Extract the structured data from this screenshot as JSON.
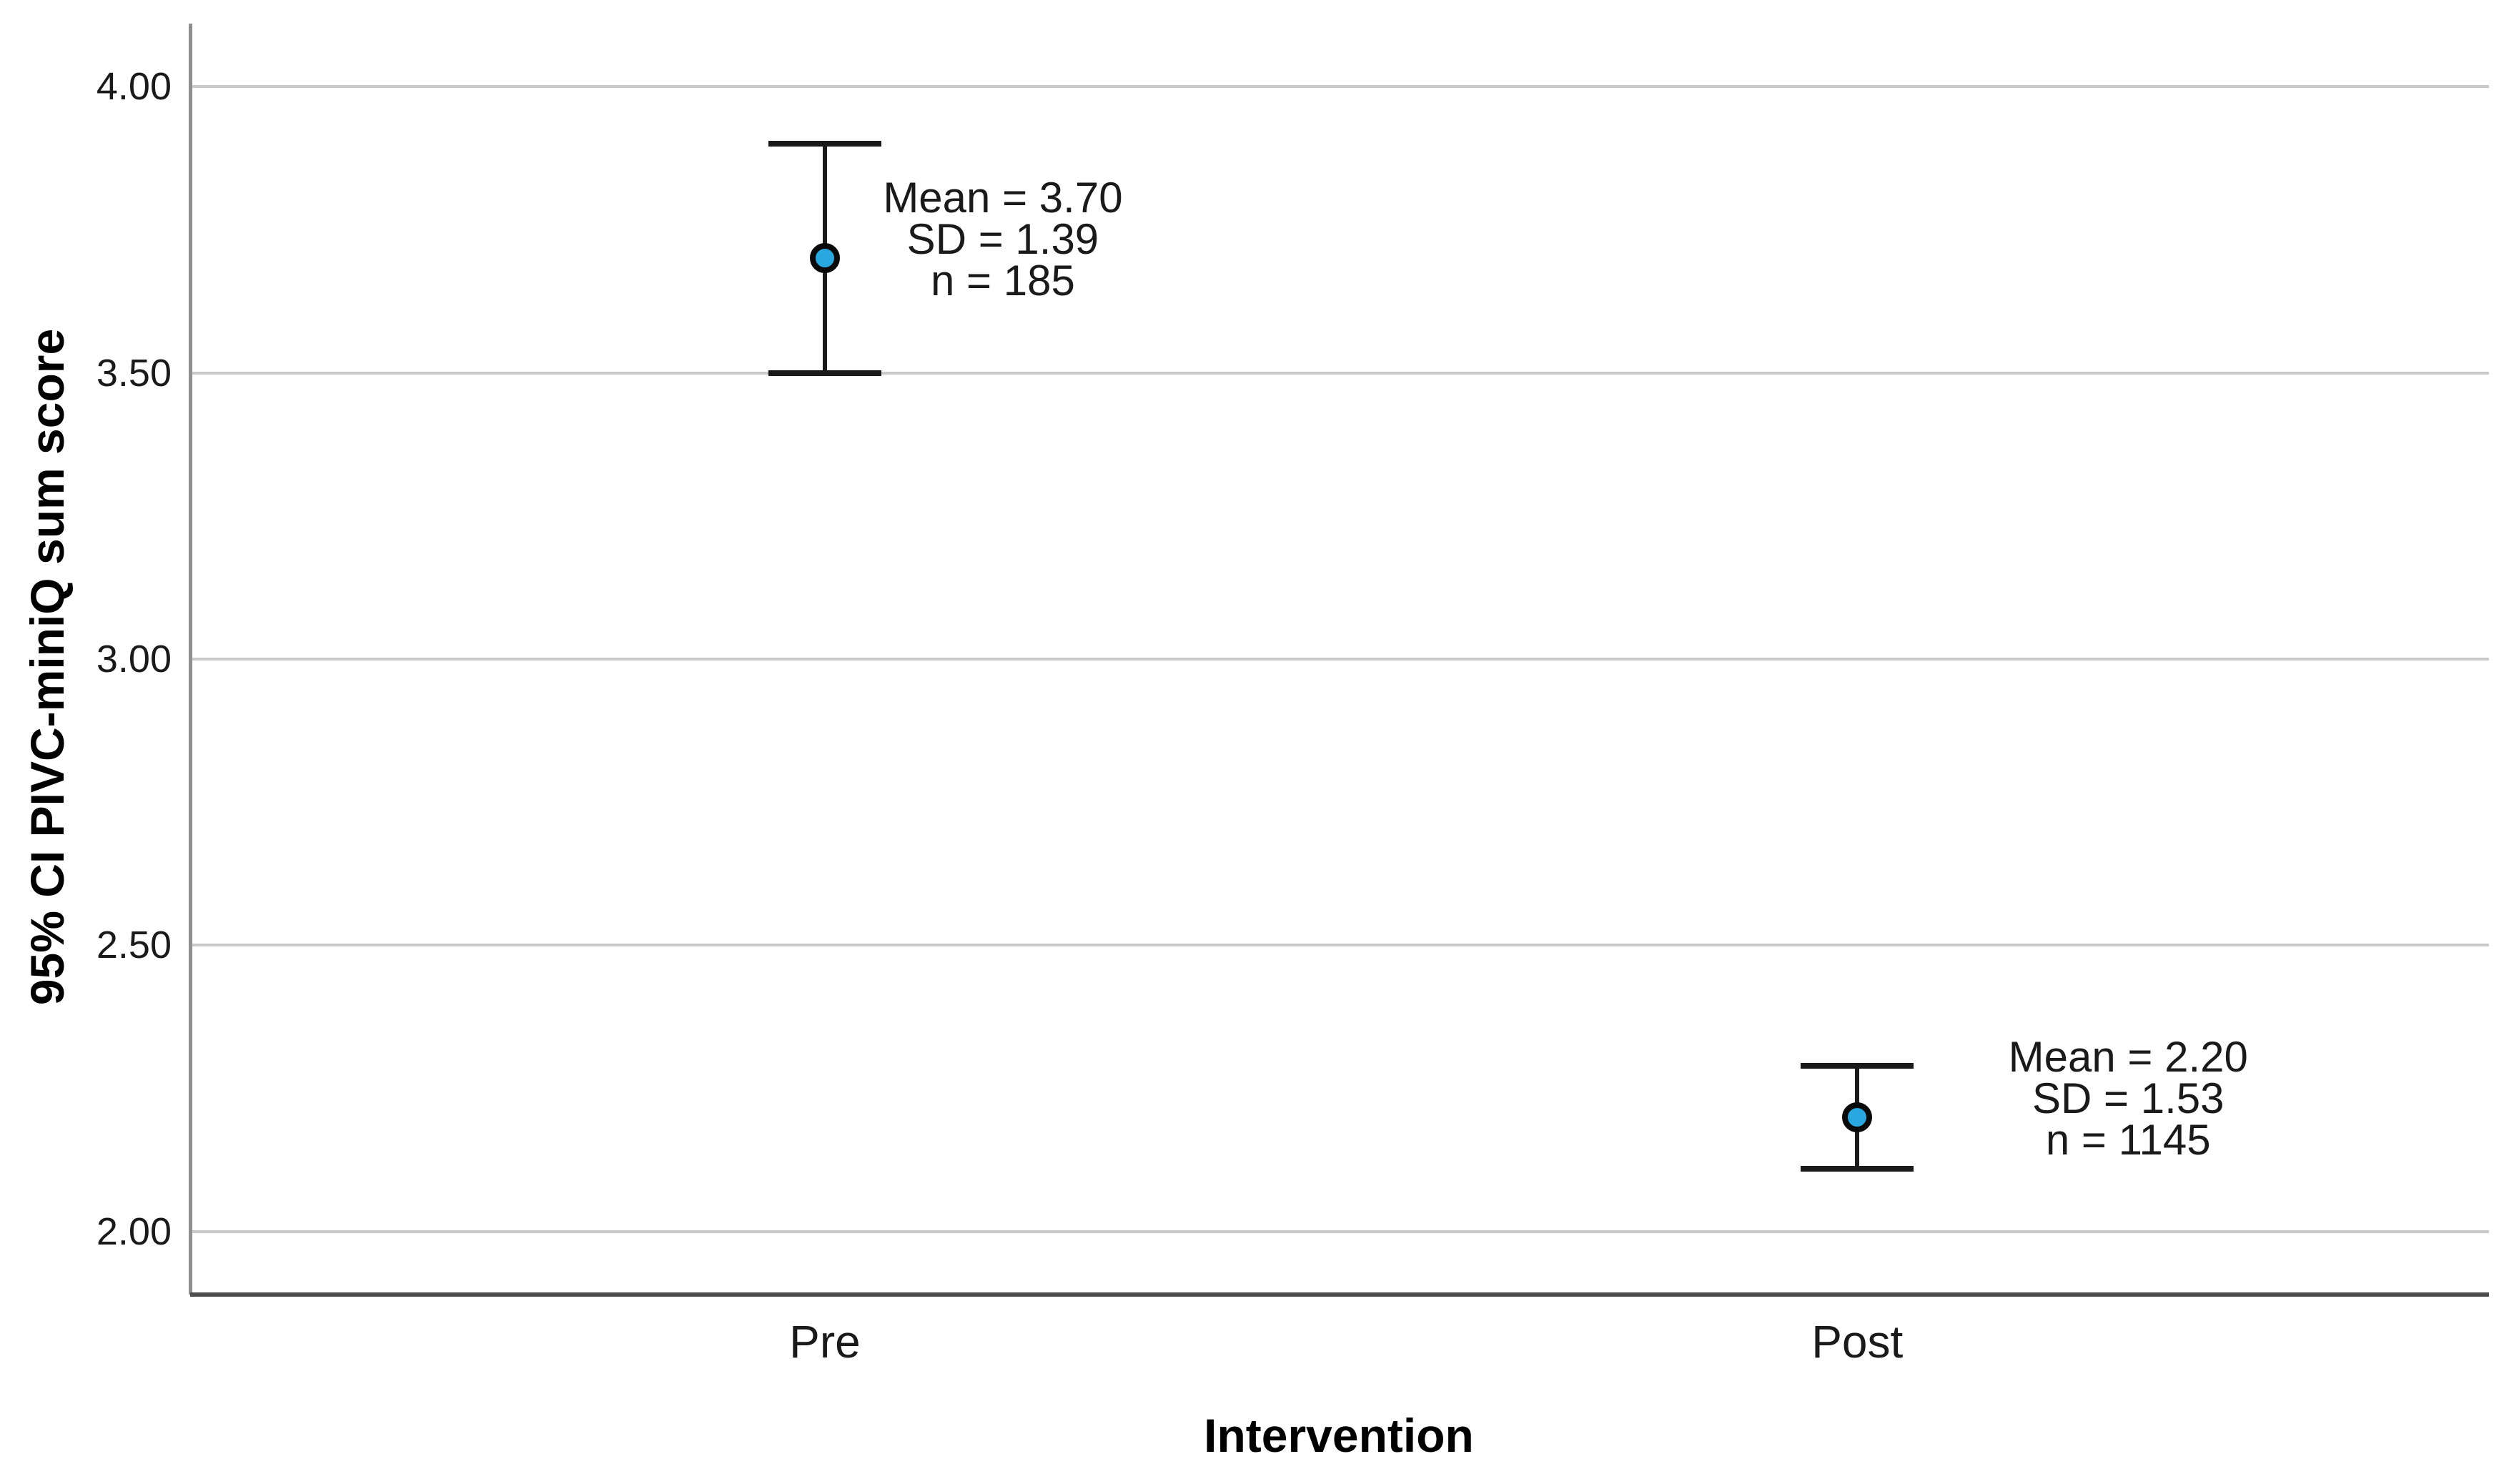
{
  "chart_data": {
    "type": "errorbar",
    "title": "",
    "xlabel": "Intervention",
    "ylabel": "95% CI PIVC-miniQ sum score",
    "categories": [
      "Pre",
      "Post"
    ],
    "ylim": [
      1.89,
      4.11
    ],
    "grid": "horizontal-only",
    "legend": "none",
    "y_ticks": [
      {
        "value": 4.0,
        "label": "4.00"
      },
      {
        "value": 3.5,
        "label": "3.50"
      },
      {
        "value": 3.0,
        "label": "3.00"
      },
      {
        "value": 2.5,
        "label": "2.50"
      },
      {
        "value": 2.0,
        "label": "2.00"
      }
    ],
    "points": [
      {
        "category": "Pre",
        "mean": 3.7,
        "sd": 1.39,
        "n": 185,
        "ci_low": 3.5,
        "ci_high": 3.9,
        "annotation_lines": [
          "Mean = 3.70",
          "SD = 1.39",
          "n = 185"
        ]
      },
      {
        "category": "Post",
        "mean": 2.2,
        "sd": 1.53,
        "n": 1145,
        "ci_low": 2.11,
        "ci_high": 2.29,
        "annotation_lines": [
          "Mean = 2.20",
          "SD = 1.53",
          "n = 1145"
        ]
      }
    ],
    "colors": {
      "marker_fill": "#29a7e0",
      "marker_outline": "#0a0a0a",
      "errorbar": "#1a1a1a",
      "gridline": "#c9c9c9",
      "y_axis_line": "#8f8f8f",
      "x_axis_line": "#4d4d4d",
      "text": "#000000",
      "background": "#ffffff"
    }
  }
}
